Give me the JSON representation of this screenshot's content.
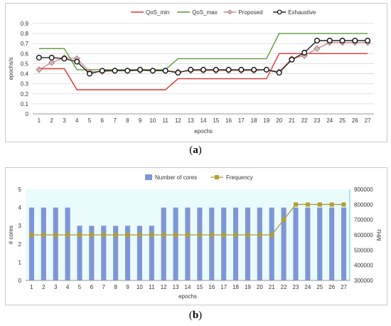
{
  "chart_data": [
    {
      "type": "line",
      "panel_label": "a",
      "xlabel": "epochs",
      "ylabel": "epochs/s",
      "ylim": [
        0,
        0.9
      ],
      "yticks": [
        "0",
        "0.1",
        "0.2",
        "0.3",
        "0.4",
        "0.5",
        "0.6",
        "0.7",
        "0.8",
        "0.9"
      ],
      "categories": [
        "1",
        "2",
        "3",
        "4",
        "5",
        "6",
        "7",
        "8",
        "9",
        "10",
        "11",
        "12",
        "13",
        "14",
        "15",
        "16",
        "17",
        "18",
        "19",
        "20",
        "21",
        "22",
        "23",
        "24",
        "25",
        "26",
        "27"
      ],
      "legend_position": "top",
      "grid": true,
      "series": [
        {
          "name": "QoS_min",
          "color": "#e03030",
          "values": [
            0.45,
            0.45,
            0.45,
            0.24,
            0.24,
            0.24,
            0.24,
            0.24,
            0.24,
            0.24,
            0.24,
            0.35,
            0.35,
            0.35,
            0.35,
            0.35,
            0.35,
            0.35,
            0.35,
            0.6,
            0.6,
            0.6,
            0.6,
            0.6,
            0.6,
            0.6,
            0.6
          ]
        },
        {
          "name": "QoS_max",
          "color": "#5a9a3a",
          "values": [
            0.65,
            0.65,
            0.65,
            0.44,
            0.44,
            0.44,
            0.44,
            0.44,
            0.44,
            0.44,
            0.44,
            0.55,
            0.55,
            0.55,
            0.55,
            0.55,
            0.55,
            0.55,
            0.55,
            0.8,
            0.8,
            0.8,
            0.8,
            0.8,
            0.8,
            0.8,
            0.8
          ]
        },
        {
          "name": "Proposed",
          "color": "#d08a8a",
          "values": [
            0.44,
            0.51,
            0.56,
            0.55,
            0.42,
            0.42,
            0.43,
            0.43,
            0.43,
            0.43,
            0.43,
            0.42,
            0.43,
            0.43,
            0.43,
            0.43,
            0.43,
            0.43,
            0.44,
            0.42,
            0.55,
            0.58,
            0.65,
            0.71,
            0.71,
            0.71,
            0.71
          ]
        },
        {
          "name": "Exhaustive",
          "color": "#222222",
          "values": [
            0.56,
            0.56,
            0.55,
            0.52,
            0.4,
            0.43,
            0.43,
            0.43,
            0.44,
            0.43,
            0.43,
            0.41,
            0.44,
            0.44,
            0.44,
            0.44,
            0.44,
            0.44,
            0.44,
            0.41,
            0.54,
            0.61,
            0.73,
            0.73,
            0.73,
            0.73,
            0.73
          ]
        }
      ]
    },
    {
      "type": "bar",
      "panel_label": "b",
      "xlabel": "epochs",
      "ylabel": "# cores",
      "y2label": "MHz",
      "ylim": [
        0,
        5
      ],
      "yticks": [
        "0",
        "1",
        "2",
        "3",
        "4",
        "5"
      ],
      "y2lim": [
        300000,
        900000
      ],
      "y2ticks": [
        "300000",
        "400000",
        "500000",
        "600000",
        "700000",
        "800000",
        "900000"
      ],
      "categories": [
        "1",
        "2",
        "3",
        "4",
        "5",
        "6",
        "7",
        "8",
        "9",
        "10",
        "11",
        "12",
        "13",
        "14",
        "15",
        "16",
        "17",
        "18",
        "19",
        "20",
        "21",
        "22",
        "23",
        "24",
        "25",
        "26",
        "27"
      ],
      "legend_position": "top",
      "series": [
        {
          "name": "Number of cores",
          "color": "#7f95d6",
          "axis": "left",
          "values": [
            4,
            4,
            4,
            4,
            3,
            3,
            3,
            3,
            3,
            3,
            3,
            4,
            4,
            4,
            4,
            4,
            4,
            4,
            4,
            4,
            4,
            4,
            4,
            4,
            4,
            4,
            4
          ]
        },
        {
          "name": "Frequency",
          "color": "#a89a3a",
          "marker_color": "#b0a030",
          "axis": "right",
          "values": [
            600000,
            600000,
            600000,
            600000,
            600000,
            600000,
            600000,
            600000,
            600000,
            600000,
            600000,
            600000,
            600000,
            600000,
            600000,
            600000,
            600000,
            600000,
            600000,
            600000,
            600000,
            700000,
            800000,
            800000,
            800000,
            800000,
            800000
          ]
        }
      ]
    }
  ],
  "captions": {
    "a": "a",
    "b": "b"
  }
}
